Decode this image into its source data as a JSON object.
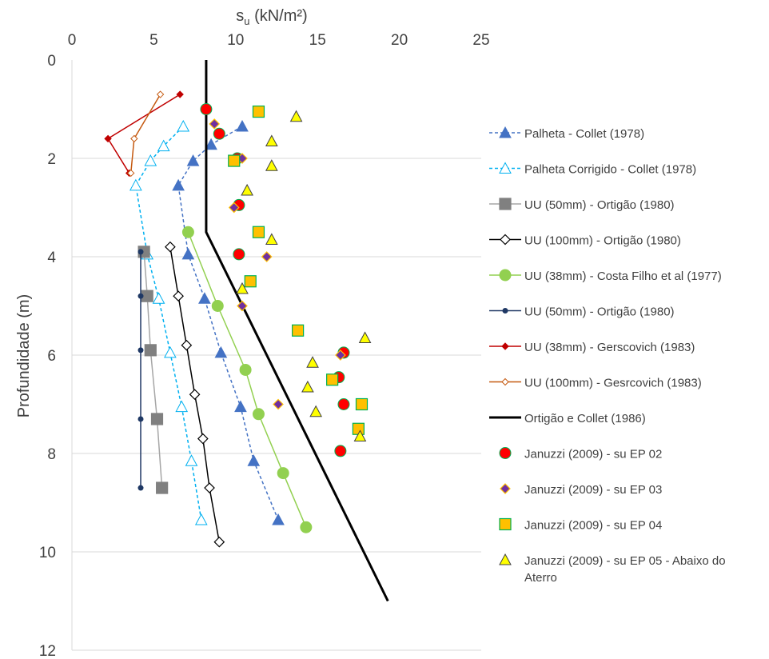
{
  "chart_data": {
    "type": "scatter",
    "x_axis_label_main": "s",
    "x_axis_label_sub": "u",
    "x_axis_label_rest": " (kN/m²)",
    "ylabel": "Profundidade (m)",
    "xlim": [
      0,
      25
    ],
    "ylim": [
      0,
      12
    ],
    "y_inverted": true,
    "x_ticks": [
      0,
      5,
      10,
      15,
      20,
      25
    ],
    "y_ticks": [
      0,
      2,
      4,
      6,
      8,
      10,
      12
    ],
    "x_tick_labels": [
      "0",
      "5",
      "10",
      "15",
      "20",
      "25"
    ],
    "y_tick_labels": [
      "0",
      "2",
      "4",
      "6",
      "8",
      "10",
      "12"
    ],
    "x_axis_position": "top",
    "grid": "horizontal",
    "legend_position": "right",
    "series": [
      {
        "name": "Palheta - Collet (1978)",
        "line": "dashed",
        "color": "#4472C4",
        "marker": "triangle",
        "marker_fill": "#4472C4",
        "marker_stroke": "#4472C4",
        "x": [
          10.4,
          8.5,
          7.4,
          6.5,
          7.1,
          8.1,
          9.1,
          10.3,
          11.1,
          12.6
        ],
        "y": [
          1.35,
          1.72,
          2.05,
          2.55,
          3.95,
          4.85,
          5.95,
          7.05,
          8.15,
          9.35
        ]
      },
      {
        "name": "Palheta Corrigido - Collet (1978)",
        "line": "dashed",
        "color": "#00B0F0",
        "marker": "triangle",
        "marker_fill": "#FFFFFF",
        "marker_stroke": "#00B0F0",
        "x": [
          6.8,
          5.6,
          4.8,
          3.9,
          4.6,
          5.3,
          6.0,
          6.7,
          7.3,
          7.9
        ],
        "y": [
          1.35,
          1.75,
          2.05,
          2.55,
          3.95,
          4.85,
          5.95,
          7.05,
          8.15,
          9.35
        ]
      },
      {
        "name": "UU (50mm) - Ortigão (1980)",
        "line": "solid",
        "color": "#A6A6A6",
        "marker": "square",
        "marker_fill": "#808080",
        "marker_stroke": "#808080",
        "x": [
          4.4,
          4.6,
          4.8,
          5.2,
          5.5
        ],
        "y": [
          3.9,
          4.8,
          5.9,
          7.3,
          8.7
        ]
      },
      {
        "name": "UU (100mm) - Ortigão (1980)",
        "line": "solid",
        "color": "#000000",
        "marker": "diamond",
        "marker_fill": "#FFFFFF",
        "marker_stroke": "#000000",
        "x": [
          6.0,
          6.5,
          7.0,
          7.5,
          8.0,
          8.4,
          9.0
        ],
        "y": [
          3.8,
          4.8,
          5.8,
          6.8,
          7.7,
          8.7,
          9.8
        ]
      },
      {
        "name": "UU (38mm) - Costa Filho et al (1977)",
        "line": "solid",
        "color": "#92D050",
        "marker": "circle",
        "marker_fill": "#92D050",
        "marker_stroke": "#92D050",
        "x": [
          7.1,
          8.9,
          10.6,
          11.4,
          12.9,
          14.3
        ],
        "y": [
          3.5,
          5.0,
          6.3,
          7.2,
          8.4,
          9.5
        ]
      },
      {
        "name": "UU (50mm) - Ortigão (1980)",
        "line": "solid",
        "color": "#1F3864",
        "marker": "circle-small",
        "marker_fill": "#1F3864",
        "marker_stroke": "#1F3864",
        "x": [
          4.2,
          4.2,
          4.2,
          4.2,
          4.2
        ],
        "y": [
          3.9,
          4.8,
          5.9,
          7.3,
          8.7
        ]
      },
      {
        "name": "UU (38mm) - Gerscovich (1983)",
        "line": "solid",
        "color": "#C00000",
        "marker": "diamond-small",
        "marker_fill": "#C00000",
        "marker_stroke": "#C00000",
        "x": [
          6.6,
          2.2,
          3.5
        ],
        "y": [
          0.7,
          1.6,
          2.3
        ]
      },
      {
        "name": "UU (100mm) - Gesrcovich (1983)",
        "line": "solid",
        "color": "#C55A11",
        "marker": "diamond-small",
        "marker_fill": "#FFFFFF",
        "marker_stroke": "#C55A11",
        "x": [
          5.4,
          3.8,
          3.6
        ],
        "y": [
          0.7,
          1.6,
          2.3
        ]
      },
      {
        "name": "Ortigão e Collet (1986)",
        "line": "solid-thick",
        "color": "#000000",
        "marker": "none",
        "x": [
          8.2,
          8.2,
          19.3
        ],
        "y": [
          0,
          3.5,
          11.0
        ]
      },
      {
        "name": "Januzzi (2009) - su EP 02",
        "line": "none",
        "color": "#C00000",
        "marker": "circle",
        "marker_fill": "#FF0000",
        "marker_stroke": "#00B050",
        "x": [
          8.2,
          9.0,
          10.1,
          10.2,
          10.2,
          16.6,
          16.3,
          16.6,
          16.4
        ],
        "y": [
          1.0,
          1.5,
          2.0,
          2.95,
          3.95,
          5.95,
          6.45,
          7.0,
          7.95
        ]
      },
      {
        "name": "Januzzi (2009) - su EP 03",
        "line": "none",
        "color": "#7030A0",
        "marker": "diamond",
        "marker_fill": "#7030A0",
        "marker_stroke": "#FFC000",
        "x": [
          8.7,
          10.4,
          9.9,
          11.9,
          10.4,
          16.4,
          12.6
        ],
        "y": [
          1.3,
          2.0,
          3.0,
          4.0,
          5.0,
          6.0,
          7.0
        ]
      },
      {
        "name": "Januzzi (2009) - su EP 04",
        "line": "none",
        "color": "#FFC000",
        "marker": "square",
        "marker_fill": "#FFC000",
        "marker_stroke": "#00B050",
        "x": [
          11.4,
          9.9,
          11.4,
          10.9,
          13.8,
          15.9,
          17.7,
          17.5
        ],
        "y": [
          1.05,
          2.05,
          3.5,
          4.5,
          5.5,
          6.5,
          7.0,
          7.5
        ]
      },
      {
        "name": "Januzzi (2009) - su EP 05 - Abaixo do Aterro",
        "line": "none",
        "color": "#FFFF00",
        "marker": "triangle",
        "marker_fill": "#FFFF00",
        "marker_stroke": "#404040",
        "x": [
          13.7,
          12.2,
          12.2,
          10.7,
          12.2,
          10.4,
          17.9,
          14.7,
          14.4,
          14.9,
          17.6
        ],
        "y": [
          1.15,
          1.65,
          2.15,
          2.65,
          3.65,
          4.65,
          5.65,
          6.15,
          6.65,
          7.15,
          7.65
        ]
      }
    ]
  }
}
